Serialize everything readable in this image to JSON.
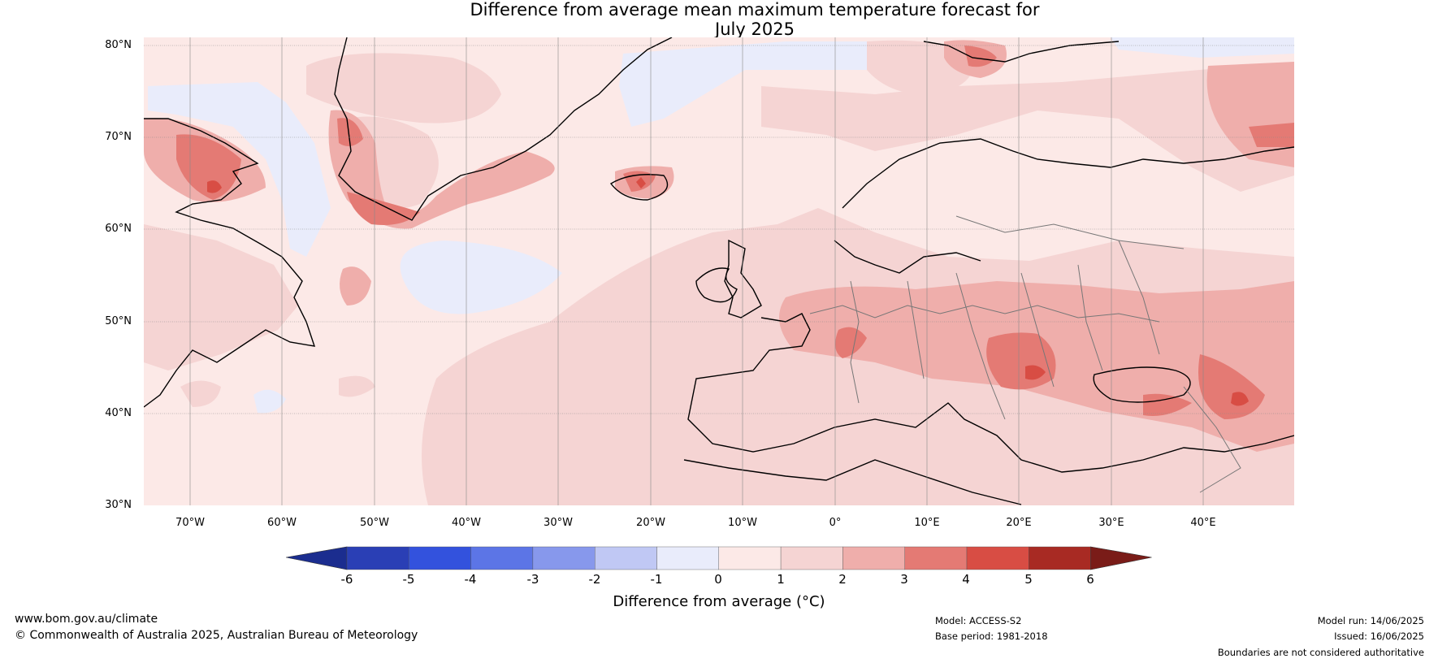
{
  "title": {
    "line1": "Difference from average mean maximum temperature forecast for",
    "line2": "July 2025"
  },
  "map": {
    "lat_labels": [
      "80°N",
      "70°N",
      "60°N",
      "50°N",
      "40°N",
      "30°N"
    ],
    "lon_labels": [
      "70°W",
      "60°W",
      "50°W",
      "40°W",
      "30°W",
      "20°W",
      "10°W",
      "0°",
      "10°E",
      "20°E",
      "30°E",
      "40°E"
    ],
    "colors": {
      "ocean_base": "#fce9e7",
      "cool_1": "#e9ecfb",
      "warm_1_2": "#f5d4d3",
      "warm_2_3": "#efaeab",
      "warm_3_4": "#e47a74",
      "warm_4_5": "#d84d44"
    }
  },
  "colorbar": {
    "ticks": [
      "-6",
      "-5",
      "-4",
      "-3",
      "-2",
      "-1",
      "0",
      "1",
      "2",
      "3",
      "4",
      "5",
      "6"
    ],
    "colors": [
      "#1b2d8f",
      "#2a3fb5",
      "#3352dd",
      "#5c75e6",
      "#8798ec",
      "#c0c8f4",
      "#e9ecfb",
      "#fce9e7",
      "#f5d4d3",
      "#efaeab",
      "#e47a74",
      "#d84d44",
      "#a82a23",
      "#7a1c18"
    ],
    "label": "Difference from average (°C)"
  },
  "footer": {
    "website": "www.bom.gov.au/climate",
    "copyright": "© Commonwealth of Australia 2025, Australian Bureau of Meteorology",
    "model": "Model: ACCESS-S2",
    "base_period": "Base period: 1981-2018",
    "model_run": "Model run: 14/06/2025",
    "issued": "Issued: 16/06/2025",
    "disclaimer": "Boundaries are not considered authoritative"
  }
}
